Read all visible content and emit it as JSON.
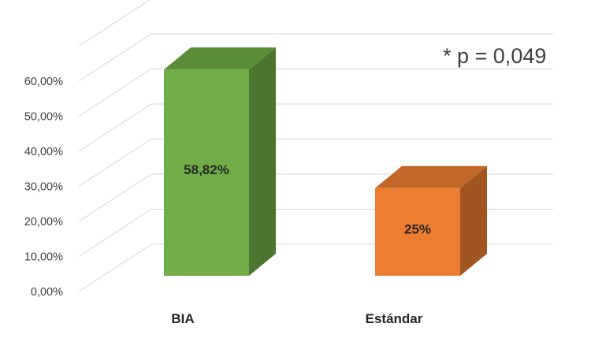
{
  "chart_data": {
    "type": "bar",
    "title": "",
    "xlabel": "",
    "ylabel": "",
    "categories": [
      "BIA",
      "Estándar"
    ],
    "values": [
      58.82,
      25
    ],
    "data_labels": [
      "58,82%",
      "25%"
    ],
    "ylim": [
      0,
      70
    ],
    "yticks": [
      0,
      10,
      20,
      30,
      40,
      50,
      60
    ],
    "ytick_labels": [
      "0,00%",
      "10,00%",
      "20,00%",
      "30,00%",
      "40,00%",
      "50,00%",
      "60,00%"
    ],
    "grid": true,
    "style": "3d-column",
    "colors": [
      "#70ad47",
      "#ed7d31"
    ],
    "annotation": "* p = 0,049"
  }
}
